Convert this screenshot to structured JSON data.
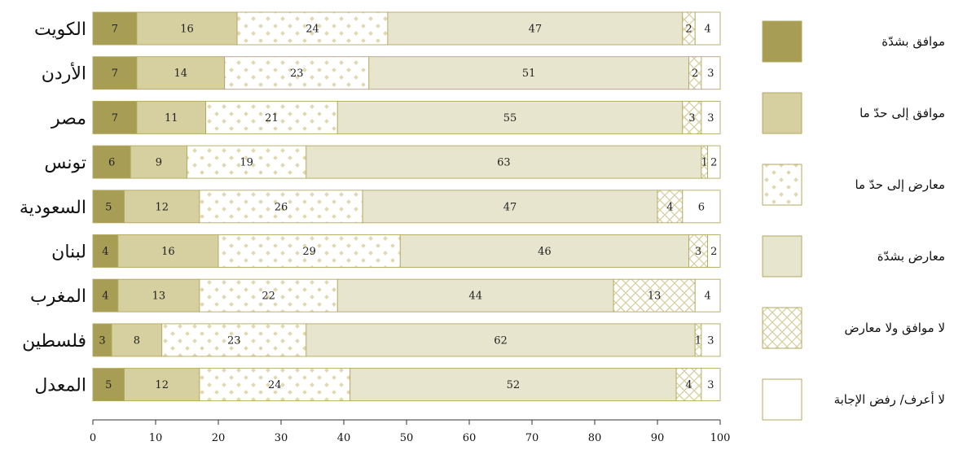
{
  "chart_data": {
    "type": "bar",
    "orientation": "horizontal",
    "stacked": true,
    "title": "",
    "xlabel": "",
    "ylabel": "",
    "xlim": [
      0,
      100
    ],
    "x_ticks": [
      0,
      10,
      20,
      30,
      40,
      50,
      60,
      70,
      80,
      90,
      100
    ],
    "grid": false,
    "legend_position": "right",
    "categories": [
      "الكويت",
      "الأردن",
      "مصر",
      "تونس",
      "السعودية",
      "لبنان",
      "المغرب",
      "فلسطين",
      "المعدل"
    ],
    "series": [
      {
        "name": "موافق بشدّة",
        "pattern": "solid",
        "color": "#a89d55",
        "values": [
          7,
          7,
          7,
          6,
          5,
          4,
          4,
          3,
          5
        ]
      },
      {
        "name": "موافق إلى حدّ ما",
        "pattern": "solid",
        "color": "#d6cfa0",
        "values": [
          16,
          14,
          11,
          9,
          12,
          16,
          13,
          8,
          12
        ]
      },
      {
        "name": "معارض إلى حدّ ما",
        "pattern": "dots",
        "color": "#e9e3c4",
        "values": [
          24,
          23,
          21,
          19,
          26,
          29,
          22,
          23,
          24
        ]
      },
      {
        "name": "معارض بشدّة",
        "pattern": "solid",
        "color": "#e8e5cf",
        "values": [
          47,
          51,
          55,
          63,
          47,
          46,
          44,
          62,
          52
        ]
      },
      {
        "name": "لا موافق ولا معارض",
        "pattern": "crosshatch",
        "color": "#ddd6ad",
        "values": [
          2,
          2,
          3,
          1,
          4,
          3,
          13,
          1,
          4
        ]
      },
      {
        "name": "لا أعرف/ رفض الإجابة",
        "pattern": "blank",
        "color": "#ffffff",
        "values": [
          4,
          3,
          3,
          2,
          6,
          2,
          4,
          3,
          3
        ]
      }
    ]
  }
}
